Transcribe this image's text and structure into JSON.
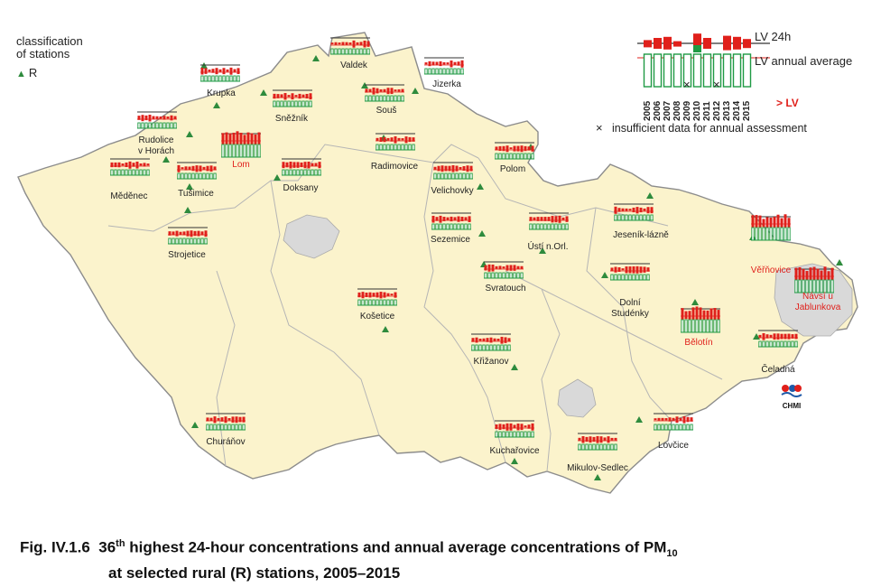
{
  "legend": {
    "title_line1": "classification",
    "title_line2": "of stations",
    "r_label": "R"
  },
  "key": {
    "lv24h": "LV 24h",
    "lv_annual": "LV annual average",
    "years": [
      "2005",
      "2006",
      "2007",
      "2008",
      "2009",
      "2010",
      "2011",
      "2012",
      "2013",
      "2014",
      "2015"
    ],
    "gt_lv": "> LV",
    "insufficient": "insufficient data for annual assessment"
  },
  "stations": [
    {
      "name": "Valdek",
      "red": false
    },
    {
      "name": "Krupka",
      "red": false
    },
    {
      "name": "Jizerka",
      "red": false
    },
    {
      "name": "Sněžník",
      "red": false
    },
    {
      "name": "Souš",
      "red": false
    },
    {
      "name": "Rudolice v Horách",
      "red": false
    },
    {
      "name": "Lom",
      "red": true
    },
    {
      "name": "Radimovice",
      "red": false
    },
    {
      "name": "Polom",
      "red": false
    },
    {
      "name": "Měděnec",
      "red": false
    },
    {
      "name": "Tušimice",
      "red": false
    },
    {
      "name": "Doksany",
      "red": false
    },
    {
      "name": "Velichovky",
      "red": false
    },
    {
      "name": "Jeseník-lázně",
      "red": false
    },
    {
      "name": "Věřňovice",
      "red": true
    },
    {
      "name": "Strojetice",
      "red": false
    },
    {
      "name": "Sezemice",
      "red": false
    },
    {
      "name": "Ústí n.Orl.",
      "red": false
    },
    {
      "name": "Svratouch",
      "red": false
    },
    {
      "name": "Dolní Studénky",
      "red": false
    },
    {
      "name": "Návsí u Jablunkova",
      "red": true
    },
    {
      "name": "Košetice",
      "red": false
    },
    {
      "name": "Bělotín",
      "red": true
    },
    {
      "name": "Křižanov",
      "red": false
    },
    {
      "name": "Čeladná",
      "red": false
    },
    {
      "name": "Churáňov",
      "red": false
    },
    {
      "name": "Kuchařovice",
      "red": false
    },
    {
      "name": "Lovčice",
      "red": false
    },
    {
      "name": "Mikulov-Sedlec",
      "red": false
    }
  ],
  "logo_text": "CHMI",
  "caption": {
    "fig": "Fig. IV.1.6",
    "num": "36",
    "sup": "th",
    "line1": "highest 24-hour concentrations and annual average concentrations of PM",
    "sub": "10",
    "line2": "at selected rural (R) stations, 2005–2015"
  },
  "colors": {
    "land": "#fbf3cc",
    "border": "#8c8c8c",
    "city": "#d9d9d9",
    "green": "#2e8b3d",
    "red": "#e0201b",
    "accent_green": "#1f9a44"
  }
}
